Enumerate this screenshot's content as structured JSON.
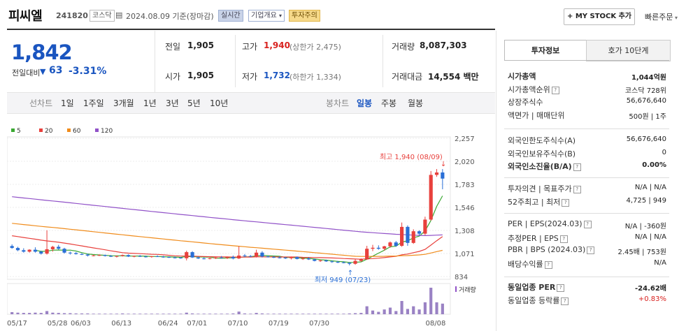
{
  "header": {
    "name": "피씨엘",
    "code": "241820",
    "market": "코스닥",
    "date": "2024.08.09",
    "date_suffix": "기준(장마감)",
    "realtime": "실시간",
    "company": "기업개요",
    "invest_warning": "투자주의",
    "mystock": "+ MY STOCK 추가",
    "quick_order": "빠른주문"
  },
  "price": {
    "current": "1,842",
    "change_label": "전일대비",
    "change": "63",
    "change_pct": "-3.31%",
    "prev_label": "전일",
    "prev": "1,905",
    "high_label": "고가",
    "high": "1,940",
    "upper_limit": "(상한가 2,475)",
    "volume_label": "거래량",
    "volume": "8,087,303",
    "open_label": "시가",
    "open": "1,905",
    "low_label": "저가",
    "low": "1,732",
    "lower_limit": "(하한가 1,334)",
    "amount_label": "거래대금",
    "amount": "14,554",
    "amount_unit": "백만"
  },
  "periods": {
    "line_label": "선차트",
    "line": [
      "1일",
      "1주일",
      "3개월",
      "1년",
      "3년",
      "5년",
      "10년"
    ],
    "candle_label": "봉차트",
    "candle": [
      "일봉",
      "주봉",
      "월봉"
    ]
  },
  "chart_data": {
    "type": "candlestick",
    "legend": [
      {
        "name": "5",
        "color": "#3aa832"
      },
      {
        "name": "20",
        "color": "#e8403c"
      },
      {
        "name": "60",
        "color": "#f08c1c"
      },
      {
        "name": "120",
        "color": "#9152c8"
      }
    ],
    "y_ticks": [
      "2,257",
      "2,020",
      "1,783",
      "1,546",
      "1,308",
      "1,071",
      "834"
    ],
    "ylim": [
      834,
      2257
    ],
    "x_ticks": [
      "05/17",
      "05/28",
      "06/03",
      "06/13",
      "06/24",
      "07/01",
      "07/10",
      "07/19",
      "07/30",
      "08/08"
    ],
    "high_annotation": "최고 1,940 (08/09)",
    "low_annotation": "최저 949 (07/23)",
    "volume_label": "거래량",
    "ohlc": [
      [
        1148,
        1165,
        1120,
        1128
      ],
      [
        1128,
        1140,
        1095,
        1105
      ],
      [
        1105,
        1125,
        1080,
        1090
      ],
      [
        1090,
        1115,
        1080,
        1110
      ],
      [
        1110,
        1135,
        1080,
        1090
      ],
      [
        1090,
        1100,
        1060,
        1070
      ],
      [
        1070,
        1310,
        1060,
        1115
      ],
      [
        1115,
        1150,
        1090,
        1140
      ],
      [
        1140,
        1160,
        1110,
        1120
      ],
      [
        1120,
        1130,
        1070,
        1080
      ],
      [
        1080,
        1090,
        1060,
        1075
      ],
      [
        1075,
        1085,
        1060,
        1065
      ],
      [
        1065,
        1075,
        1055,
        1060
      ],
      [
        1060,
        1070,
        1040,
        1050
      ],
      [
        1050,
        1058,
        1042,
        1052
      ],
      [
        1052,
        1062,
        1045,
        1055
      ],
      [
        1055,
        1060,
        1040,
        1046
      ],
      [
        1046,
        1055,
        1035,
        1038
      ],
      [
        1038,
        1050,
        1030,
        1045
      ],
      [
        1045,
        1060,
        1040,
        1055
      ],
      [
        1055,
        1062,
        1035,
        1040
      ],
      [
        1040,
        1050,
        1032,
        1045
      ],
      [
        1045,
        1055,
        1035,
        1040
      ],
      [
        1040,
        1048,
        1030,
        1035
      ],
      [
        1035,
        1045,
        1028,
        1042
      ],
      [
        1042,
        1052,
        1035,
        1038
      ],
      [
        1038,
        1046,
        1028,
        1035
      ],
      [
        1035,
        1040,
        1025,
        1030
      ],
      [
        1030,
        1040,
        1020,
        1028
      ],
      [
        1028,
        1035,
        1018,
        1022
      ],
      [
        1022,
        1100,
        1000,
        1085
      ],
      [
        1085,
        1095,
        1025,
        1030
      ],
      [
        1030,
        1040,
        1015,
        1020
      ],
      [
        1020,
        1030,
        1010,
        1015
      ],
      [
        1015,
        1028,
        1010,
        1022
      ],
      [
        1022,
        1035,
        1015,
        1030
      ],
      [
        1030,
        1045,
        1020,
        1025
      ],
      [
        1025,
        1040,
        1015,
        1035
      ],
      [
        1035,
        1050,
        1010,
        1020
      ],
      [
        1020,
        1145,
        1015,
        1050
      ],
      [
        1050,
        1065,
        1035,
        1045
      ],
      [
        1045,
        1055,
        1035,
        1040
      ],
      [
        1040,
        1110,
        1030,
        1080
      ],
      [
        1080,
        1095,
        1030,
        1040
      ],
      [
        1040,
        1050,
        1030,
        1035
      ],
      [
        1035,
        1045,
        1025,
        1030
      ],
      [
        1030,
        1042,
        1020,
        1028
      ],
      [
        1028,
        1035,
        1015,
        1022
      ],
      [
        1022,
        1040,
        1010,
        1035
      ],
      [
        1035,
        1040,
        1010,
        1015
      ],
      [
        1015,
        1030,
        1005,
        1020
      ],
      [
        1020,
        1032,
        1005,
        1010
      ],
      [
        1010,
        1018,
        990,
        995
      ],
      [
        995,
        1010,
        985,
        1000
      ],
      [
        1000,
        1008,
        985,
        990
      ],
      [
        990,
        1000,
        975,
        985
      ],
      [
        985,
        995,
        972,
        980
      ],
      [
        980,
        990,
        970,
        975
      ],
      [
        975,
        980,
        949,
        965
      ],
      [
        965,
        1010,
        955,
        995
      ],
      [
        995,
        1020,
        985,
        1010
      ],
      [
        1010,
        1150,
        1005,
        1120
      ],
      [
        1120,
        1160,
        1095,
        1130
      ],
      [
        1130,
        1155,
        1110,
        1120
      ],
      [
        1120,
        1150,
        1100,
        1145
      ],
      [
        1145,
        1195,
        1130,
        1185
      ],
      [
        1185,
        1200,
        1140,
        1150
      ],
      [
        1150,
        1390,
        1140,
        1345
      ],
      [
        1345,
        1360,
        1150,
        1180
      ],
      [
        1180,
        1320,
        1170,
        1300
      ],
      [
        1300,
        1310,
        1255,
        1275
      ],
      [
        1275,
        1450,
        1260,
        1420
      ],
      [
        1420,
        1920,
        1410,
        1880
      ],
      [
        1880,
        1940,
        1860,
        1905
      ],
      [
        1905,
        1940,
        1732,
        1842
      ]
    ],
    "volume": [
      0.08,
      0.06,
      0.05,
      0.05,
      0.06,
      0.05,
      0.12,
      0.06,
      0.05,
      0.04,
      0.04,
      0.03,
      0.03,
      0.03,
      0.02,
      0.02,
      0.02,
      0.02,
      0.02,
      0.03,
      0.02,
      0.02,
      0.02,
      0.02,
      0.02,
      0.02,
      0.02,
      0.02,
      0.02,
      0.02,
      0.06,
      0.03,
      0.02,
      0.02,
      0.02,
      0.02,
      0.02,
      0.02,
      0.03,
      0.1,
      0.03,
      0.02,
      0.05,
      0.03,
      0.02,
      0.02,
      0.02,
      0.02,
      0.02,
      0.02,
      0.02,
      0.02,
      0.02,
      0.02,
      0.02,
      0.02,
      0.02,
      0.02,
      0.03,
      0.04,
      0.05,
      0.3,
      0.14,
      0.09,
      0.18,
      0.25,
      0.12,
      0.5,
      0.2,
      0.3,
      0.18,
      0.45,
      1.0,
      0.45,
      0.4
    ]
  },
  "right": {
    "tab_invest": "투자정보",
    "tab_hoga": "호가 10단계",
    "rows1": [
      {
        "l": "시가총액",
        "v": "1,044억원"
      },
      {
        "l": "시가총액순위",
        "v": "코스닥 728위"
      },
      {
        "l": "상장주식수",
        "v": "56,676,640"
      },
      {
        "l": "액면가 | 매매단위",
        "v": "500원 | 1주"
      }
    ],
    "rows2": [
      {
        "l": "외국인한도주식수(A)",
        "v": "56,676,640"
      },
      {
        "l": "외국인보유주식수(B)",
        "v": "0"
      },
      {
        "l": "외국인소진율(B/A)",
        "v": "0.00%"
      }
    ],
    "rows3": [
      {
        "l": "투자의견 | 목표주가",
        "v": "N/A | N/A"
      },
      {
        "l": "52주최고 | 최저",
        "v": "4,725 | 949"
      }
    ],
    "rows4": [
      {
        "l": "PER | EPS(2024.03)",
        "v": "N/A | -360원"
      },
      {
        "l": "추정PER | EPS",
        "v": "N/A | N/A"
      },
      {
        "l": "PBR | BPS (2024.03)",
        "v": "2.45배 | 753원"
      },
      {
        "l": "배당수익률",
        "v": "N/A"
      }
    ],
    "rows5": [
      {
        "l": "동일업종 PER",
        "v": "-24.62배"
      },
      {
        "l": "동일업종 등락률",
        "v": "+0.83%"
      }
    ]
  }
}
